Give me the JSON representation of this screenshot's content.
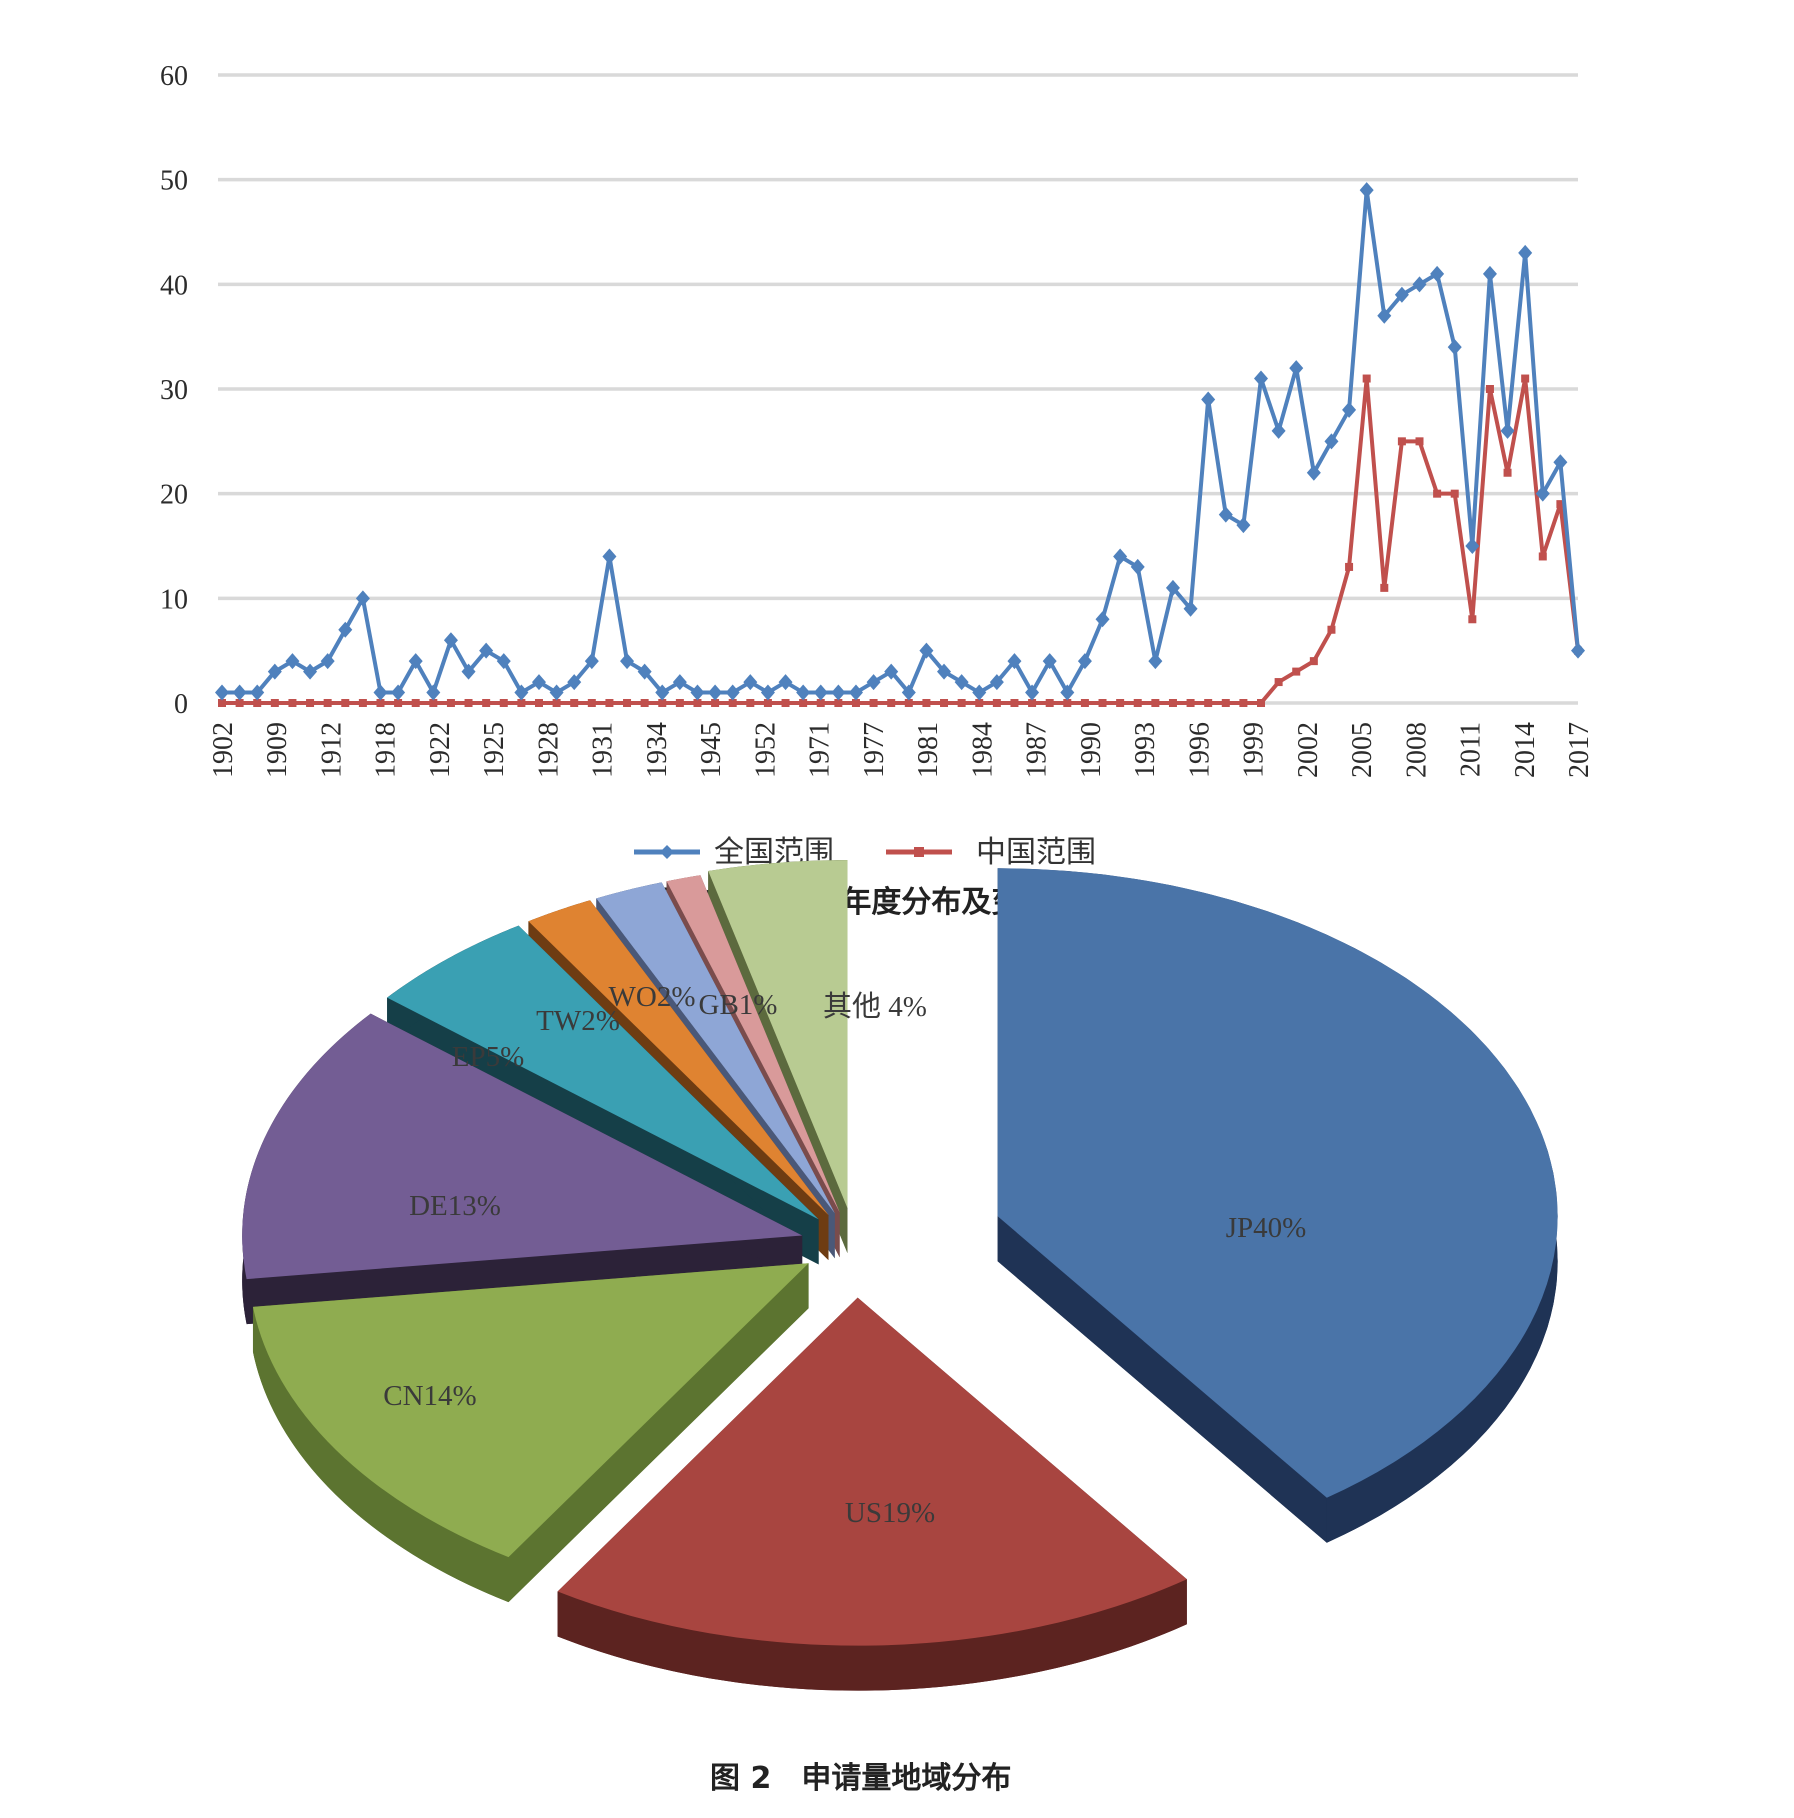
{
  "figure1": {
    "caption": "图 1　申请量年度分布及变化",
    "chart_data": {
      "type": "line",
      "xlabel": "",
      "ylabel": "",
      "ylim": [
        0,
        60
      ],
      "yticks": [
        0,
        10,
        20,
        30,
        40,
        50,
        60
      ],
      "grid": true,
      "legend_position": "bottom",
      "x_tick_labels": [
        "1902",
        "1909",
        "1912",
        "1918",
        "1922",
        "1925",
        "1928",
        "1931",
        "1934",
        "1945",
        "1952",
        "1971",
        "1977",
        "1981",
        "1984",
        "1987",
        "1990",
        "1993",
        "1996",
        "1999",
        "2002",
        "2005",
        "2008",
        "2011",
        "2014",
        "2017"
      ],
      "series": [
        {
          "name": "全国范围",
          "color": "#4f81bd",
          "values": [
            1,
            1,
            1,
            3,
            4,
            3,
            4,
            7,
            10,
            1,
            1,
            4,
            1,
            6,
            3,
            5,
            4,
            1,
            2,
            1,
            2,
            4,
            14,
            4,
            3,
            1,
            2,
            1,
            1,
            1,
            2,
            1,
            2,
            1,
            1,
            1,
            1,
            2,
            3,
            1,
            5,
            3,
            2,
            1,
            2,
            4,
            1,
            4,
            1,
            4,
            8,
            14,
            13,
            4,
            11,
            9,
            29,
            18,
            17,
            31,
            26,
            32,
            22,
            25,
            28,
            49,
            37,
            39,
            40,
            41,
            34,
            15,
            41,
            26,
            43,
            20,
            23,
            5
          ]
        },
        {
          "name": "中国范围",
          "color": "#c0504d",
          "values": [
            0,
            0,
            0,
            0,
            0,
            0,
            0,
            0,
            0,
            0,
            0,
            0,
            0,
            0,
            0,
            0,
            0,
            0,
            0,
            0,
            0,
            0,
            0,
            0,
            0,
            0,
            0,
            0,
            0,
            0,
            0,
            0,
            0,
            0,
            0,
            0,
            0,
            0,
            0,
            0,
            0,
            0,
            0,
            0,
            0,
            0,
            0,
            0,
            0,
            0,
            0,
            0,
            0,
            0,
            0,
            0,
            0,
            0,
            0,
            0,
            2,
            3,
            4,
            7,
            13,
            31,
            11,
            25,
            25,
            20,
            20,
            8,
            30,
            22,
            31,
            14,
            19,
            5
          ]
        }
      ]
    }
  },
  "figure2": {
    "caption": "图 2　申请量地域分布",
    "chart_data": {
      "type": "pie",
      "slices": [
        {
          "label": "JP40%",
          "value": 40,
          "color": "#4a74a8",
          "side": "#1f3355"
        },
        {
          "label": "US19%",
          "value": 19,
          "color": "#a84540",
          "side": "#5c2320"
        },
        {
          "label": "CN14%",
          "value": 14,
          "color": "#8fac50",
          "side": "#5c7430"
        },
        {
          "label": "DE13%",
          "value": 13,
          "color": "#735d94",
          "side": "#2c2238"
        },
        {
          "label": "EP5%",
          "value": 5,
          "color": "#3aa0b3",
          "side": "#153f48"
        },
        {
          "label": "TW2%",
          "value": 2,
          "color": "#df8331",
          "side": "#6e3c12"
        },
        {
          "label": "WO2%",
          "value": 2,
          "color": "#8ea6d6",
          "side": "#4a5878"
        },
        {
          "label": "GB1%",
          "value": 1,
          "color": "#d99a9a",
          "side": "#7a4c4c"
        },
        {
          "label": "其他 4%",
          "value": 4,
          "color": "#b8cb92",
          "side": "#5c6a3e"
        }
      ]
    }
  }
}
